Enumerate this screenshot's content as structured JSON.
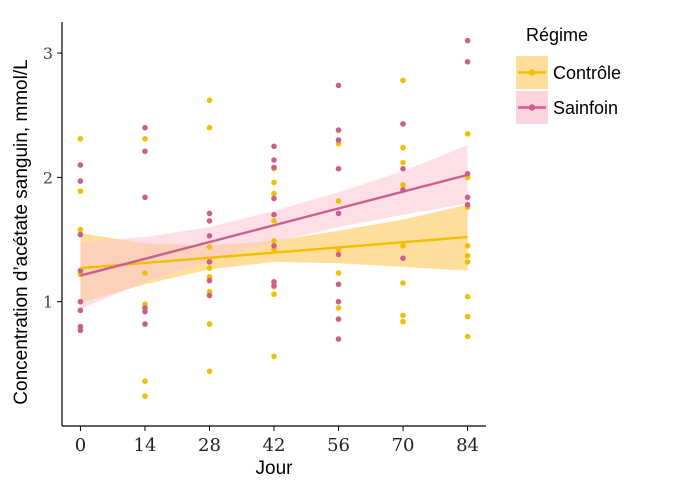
{
  "chart_data": {
    "type": "scatter",
    "xlabel": "Jour",
    "ylabel": "Concentration d’acétate sanguin, mmol/L",
    "xticks": [
      0,
      14,
      28,
      42,
      56,
      70,
      84
    ],
    "yticks": [
      1,
      2,
      3
    ],
    "xlim": [
      -4,
      88
    ],
    "ylim": [
      0.0,
      3.25
    ],
    "grid": false,
    "legend": {
      "title": "Régime",
      "placement": "right",
      "entries": [
        "Contrôle",
        "Sainfoin"
      ]
    },
    "series": [
      {
        "name": "Contrôle",
        "color": "#F0C000",
        "ribbon_color": "#FFD37A",
        "points": [
          [
            0,
            2.31
          ],
          [
            0,
            1.89
          ],
          [
            0,
            1.58
          ],
          [
            0,
            1.22
          ],
          [
            0,
            0.77
          ],
          [
            14,
            2.31
          ],
          [
            14,
            1.23
          ],
          [
            14,
            0.98
          ],
          [
            14,
            0.36
          ],
          [
            14,
            0.24
          ],
          [
            28,
            2.62
          ],
          [
            28,
            2.4
          ],
          [
            28,
            1.44
          ],
          [
            28,
            1.32
          ],
          [
            28,
            1.27
          ],
          [
            28,
            1.2
          ],
          [
            28,
            1.08
          ],
          [
            28,
            0.82
          ],
          [
            28,
            0.44
          ],
          [
            42,
            2.07
          ],
          [
            42,
            1.96
          ],
          [
            42,
            1.87
          ],
          [
            42,
            1.65
          ],
          [
            42,
            1.49
          ],
          [
            42,
            1.42
          ],
          [
            42,
            1.12
          ],
          [
            42,
            1.06
          ],
          [
            42,
            0.56
          ],
          [
            56,
            2.27
          ],
          [
            56,
            1.81
          ],
          [
            56,
            1.42
          ],
          [
            56,
            1.23
          ],
          [
            56,
            0.95
          ],
          [
            70,
            2.78
          ],
          [
            70,
            2.24
          ],
          [
            70,
            2.12
          ],
          [
            70,
            1.94
          ],
          [
            70,
            1.45
          ],
          [
            70,
            1.15
          ],
          [
            70,
            0.89
          ],
          [
            70,
            0.84
          ],
          [
            84,
            2.35
          ],
          [
            84,
            2.0
          ],
          [
            84,
            1.76
          ],
          [
            84,
            1.45
          ],
          [
            84,
            1.37
          ],
          [
            84,
            1.32
          ],
          [
            84,
            1.04
          ],
          [
            84,
            0.88
          ],
          [
            84,
            0.72
          ]
        ],
        "fit": {
          "x": [
            0,
            84
          ],
          "y": [
            1.27,
            1.52
          ]
        },
        "ribbon": {
          "x": [
            0,
            14,
            28,
            42,
            56,
            70,
            84
          ],
          "upper": [
            1.55,
            1.47,
            1.45,
            1.49,
            1.57,
            1.66,
            1.78
          ],
          "lower": [
            0.99,
            1.14,
            1.26,
            1.32,
            1.31,
            1.28,
            1.25
          ]
        }
      },
      {
        "name": "Sainfoin",
        "color": "#CC5E8E",
        "ribbon_color": "#F9C6D2",
        "points": [
          [
            0,
            2.1
          ],
          [
            0,
            1.97
          ],
          [
            0,
            1.54
          ],
          [
            0,
            1.25
          ],
          [
            0,
            1.0
          ],
          [
            0,
            0.93
          ],
          [
            0,
            0.8
          ],
          [
            0,
            0.77
          ],
          [
            14,
            2.4
          ],
          [
            14,
            2.21
          ],
          [
            14,
            1.84
          ],
          [
            14,
            0.95
          ],
          [
            14,
            0.92
          ],
          [
            14,
            0.82
          ],
          [
            28,
            1.71
          ],
          [
            28,
            1.65
          ],
          [
            28,
            1.53
          ],
          [
            28,
            1.32
          ],
          [
            28,
            1.17
          ],
          [
            28,
            1.05
          ],
          [
            42,
            2.25
          ],
          [
            42,
            2.14
          ],
          [
            42,
            2.08
          ],
          [
            42,
            1.83
          ],
          [
            42,
            1.7
          ],
          [
            42,
            1.45
          ],
          [
            42,
            1.16
          ],
          [
            42,
            1.13
          ],
          [
            56,
            2.74
          ],
          [
            56,
            2.38
          ],
          [
            56,
            2.3
          ],
          [
            56,
            2.07
          ],
          [
            56,
            1.71
          ],
          [
            56,
            1.38
          ],
          [
            56,
            1.14
          ],
          [
            56,
            1.0
          ],
          [
            56,
            0.86
          ],
          [
            56,
            0.7
          ],
          [
            70,
            2.43
          ],
          [
            70,
            2.07
          ],
          [
            70,
            1.9
          ],
          [
            70,
            1.35
          ],
          [
            84,
            3.1
          ],
          [
            84,
            2.93
          ],
          [
            84,
            2.03
          ],
          [
            84,
            1.84
          ],
          [
            84,
            1.78
          ]
        ],
        "fit": {
          "x": [
            0,
            84
          ],
          "y": [
            1.21,
            2.02
          ]
        },
        "ribbon": {
          "x": [
            0,
            14,
            28,
            42,
            56,
            70,
            84
          ],
          "upper": [
            1.48,
            1.52,
            1.6,
            1.73,
            1.88,
            2.05,
            2.26
          ],
          "lower": [
            0.94,
            1.16,
            1.33,
            1.48,
            1.6,
            1.7,
            1.79
          ]
        }
      }
    ]
  }
}
